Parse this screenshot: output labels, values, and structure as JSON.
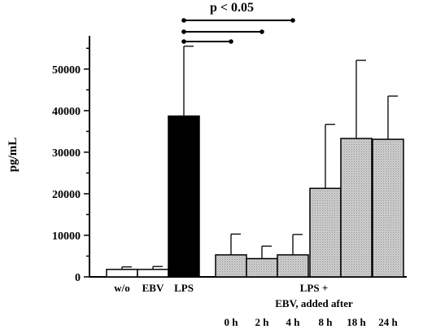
{
  "chart_data": {
    "type": "bar",
    "title": "",
    "ylabel": "pg/mL",
    "xlabel": "",
    "ylim": [
      0,
      58000
    ],
    "yticks": [
      0,
      10000,
      20000,
      30000,
      40000,
      50000
    ],
    "grid": false,
    "categories": [
      "w/o",
      "EBV",
      "LPS",
      "0 h",
      "2 h",
      "4 h",
      "8 h",
      "18 h",
      "24 h"
    ],
    "values": [
      1800,
      1800,
      38700,
      5300,
      4400,
      5300,
      21300,
      33300,
      33100
    ],
    "error_upper": [
      2400,
      2500,
      55500,
      10300,
      7400,
      10200,
      36700,
      52100,
      43500
    ],
    "bar_styles": [
      "open",
      "open",
      "solid",
      "stippled",
      "stippled",
      "stippled",
      "stippled",
      "stippled",
      "stippled"
    ],
    "group_label_line1": "LPS +",
    "group_label_line2": "EBV, added after",
    "significance": {
      "label": "p < 0.05",
      "comparisons": [
        [
          "LPS",
          "0 h"
        ],
        [
          "LPS",
          "2 h"
        ],
        [
          "LPS",
          "4 h"
        ]
      ]
    }
  },
  "colors": {
    "bar_open": "#ffffff",
    "bar_solid": "#000000",
    "bar_stippled": "#c9c9c9",
    "stroke": "#000000"
  }
}
